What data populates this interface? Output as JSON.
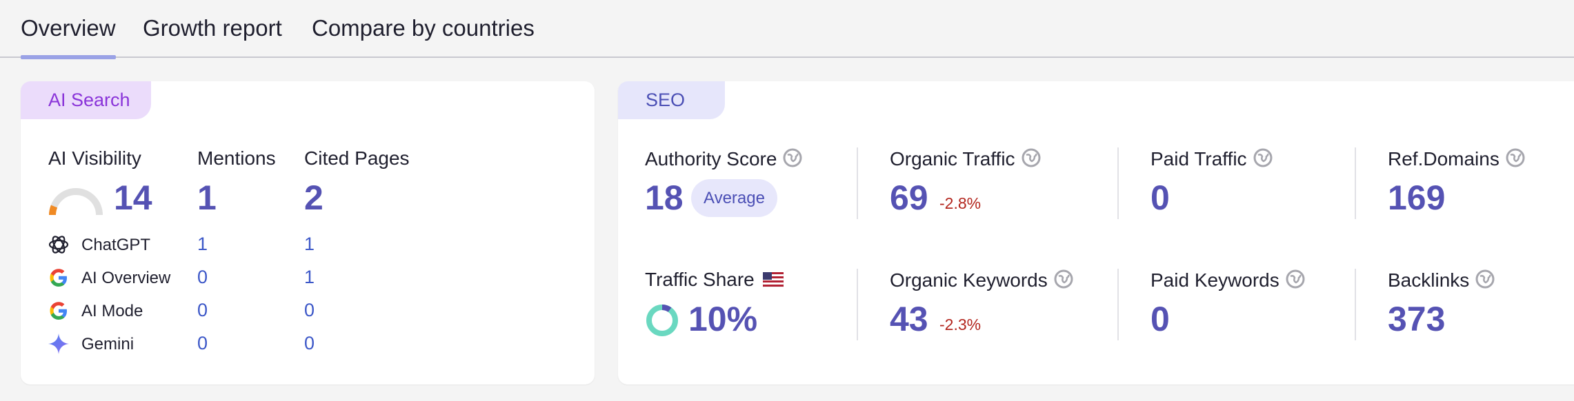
{
  "tabs": [
    {
      "label": "Overview",
      "active": true
    },
    {
      "label": "Growth report",
      "active": false
    },
    {
      "label": "Compare by countries",
      "active": false
    }
  ],
  "ai_search": {
    "tag": "AI Search",
    "visibility_label": "AI Visibility",
    "visibility_value": "14",
    "mentions_label": "Mentions",
    "mentions_value": "1",
    "cited_label": "Cited Pages",
    "cited_value": "2",
    "sources": [
      {
        "name": "ChatGPT",
        "icon": "chatgpt-icon",
        "mentions": "1",
        "cited": "1"
      },
      {
        "name": "AI Overview",
        "icon": "google-icon",
        "mentions": "0",
        "cited": "1"
      },
      {
        "name": "AI Mode",
        "icon": "google-icon",
        "mentions": "0",
        "cited": "0"
      },
      {
        "name": "Gemini",
        "icon": "gemini-icon",
        "mentions": "0",
        "cited": "0"
      }
    ]
  },
  "seo": {
    "tag": "SEO",
    "authority_label": "Authority Score",
    "authority_value": "18",
    "authority_badge": "Average",
    "organic_traffic_label": "Organic Traffic",
    "organic_traffic_value": "69",
    "organic_traffic_delta": "-2.8%",
    "paid_traffic_label": "Paid Traffic",
    "paid_traffic_value": "0",
    "ref_domains_label": "Ref.Domains",
    "ref_domains_value": "169",
    "traffic_share_label": "Traffic Share",
    "traffic_share_value": "10%",
    "organic_keywords_label": "Organic Keywords",
    "organic_keywords_value": "43",
    "organic_keywords_delta": "-2.3%",
    "paid_keywords_label": "Paid Keywords",
    "paid_keywords_value": "0",
    "backlinks_label": "Backlinks",
    "backlinks_value": "373"
  },
  "colors": {
    "accent": "#5552b3",
    "link": "#3d58c8",
    "negative": "#b3261e",
    "donut": "#6ad8c0"
  }
}
